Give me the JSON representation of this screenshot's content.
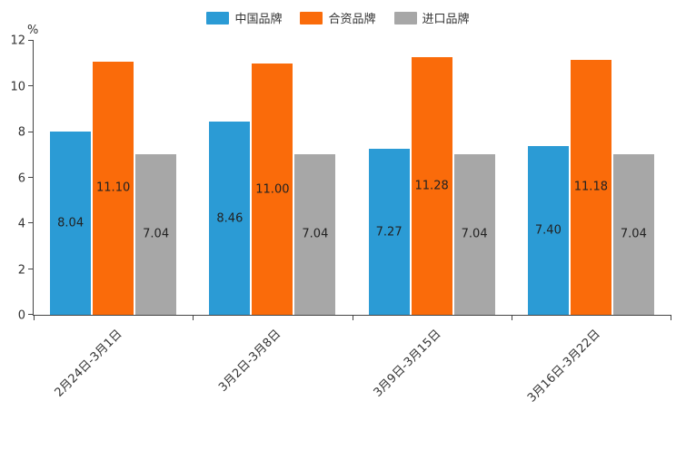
{
  "chart_data": {
    "type": "bar",
    "title": "",
    "unit": "%",
    "categories": [
      "2月24日-3月1日",
      "3月2日-3月8日",
      "3月9日-3月15日",
      "3月16日-3月22日"
    ],
    "series": [
      {
        "name": "中国品牌",
        "color": "#2b9bd5",
        "values": [
          8.04,
          8.46,
          7.27,
          7.4
        ]
      },
      {
        "name": "合资品牌",
        "color": "#fa6b0a",
        "values": [
          11.1,
          11.0,
          11.28,
          11.18
        ]
      },
      {
        "name": "进口品牌",
        "color": "#a7a7a7",
        "values": [
          7.04,
          7.04,
          7.04,
          7.04
        ]
      }
    ],
    "ylim": [
      0,
      12
    ],
    "yticks": [
      0,
      2,
      4,
      6,
      8,
      10,
      12
    ],
    "legend_position": "top",
    "grid": false,
    "value_label_decimals": 2
  }
}
